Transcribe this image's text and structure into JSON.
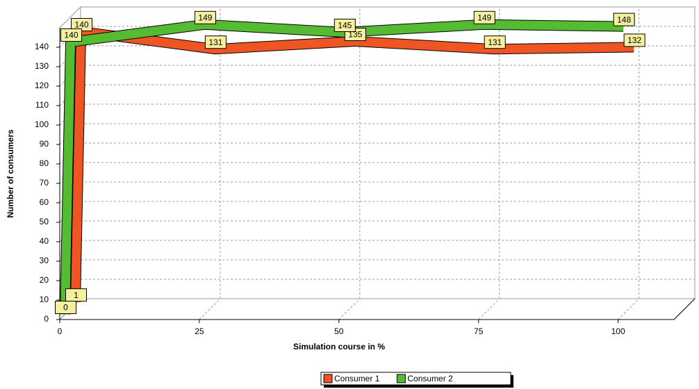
{
  "chart_data": {
    "type": "line",
    "x_label": "Simulation course in %",
    "y_label": "Number of consumers",
    "x": [
      0,
      1,
      25,
      50,
      75,
      100
    ],
    "series": [
      {
        "name": "Consumer 1",
        "color": "#ee5522",
        "values": [
          1,
          140,
          131,
          135,
          131,
          132
        ]
      },
      {
        "name": "Consumer 2",
        "color": "#55bb33",
        "values": [
          0,
          140,
          149,
          145,
          149,
          148
        ]
      }
    ],
    "xlim": [
      0,
      110
    ],
    "xticks": [
      0,
      25,
      50,
      75,
      100
    ],
    "ylim": [
      0,
      150
    ],
    "yticks": [
      0,
      10,
      20,
      30,
      40,
      50,
      60,
      70,
      80,
      90,
      100,
      110,
      120,
      130,
      140
    ],
    "grid": true,
    "legend": "bottom"
  }
}
